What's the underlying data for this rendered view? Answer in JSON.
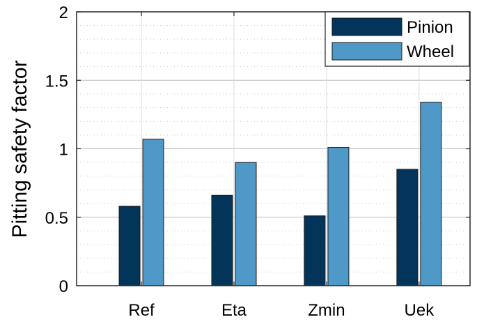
{
  "chart_data": {
    "type": "bar",
    "categories": [
      "Ref",
      "Eta",
      "Zmin",
      "Uek"
    ],
    "series": [
      {
        "name": "Pinion",
        "values": [
          0.58,
          0.66,
          0.51,
          0.85
        ]
      },
      {
        "name": "Wheel",
        "values": [
          1.07,
          0.9,
          1.01,
          1.34
        ]
      }
    ],
    "ylabel": "Pitting safety factor",
    "xlabel": "",
    "ylim": [
      0,
      2
    ],
    "yticks": [
      0,
      0.5,
      1,
      1.5,
      2
    ],
    "ytick_labels": [
      "0",
      "0.5",
      "1",
      "1.5",
      "2"
    ],
    "grid": true,
    "minor_grid": true,
    "legend_position": "top-right",
    "colors": {
      "Pinion": "#03355a",
      "Wheel": "#4f99c8"
    }
  }
}
